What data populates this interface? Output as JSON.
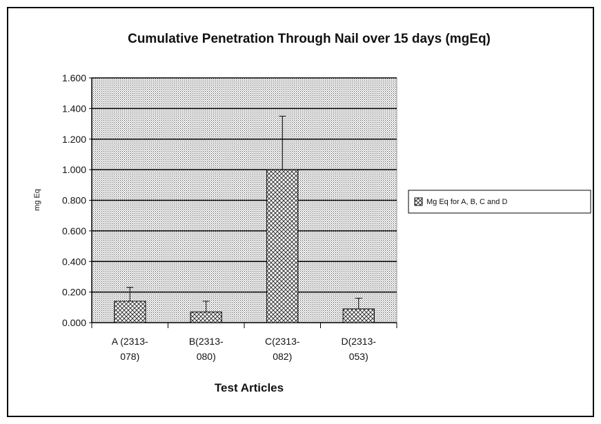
{
  "chart_data": {
    "type": "bar",
    "title": "Cumulative Penetration Through Nail over 15 days (mgEq)",
    "xlabel": "Test Articles",
    "ylabel": "mg Eq",
    "ylim": [
      0,
      1.6
    ],
    "yticks": [
      "0.000",
      "0.200",
      "0.400",
      "0.600",
      "0.800",
      "1.000",
      "1.200",
      "1.400",
      "1.600"
    ],
    "categories": [
      [
        "A (2313-",
        "078)"
      ],
      [
        "B(2313-",
        "080)"
      ],
      [
        "C(2313-",
        "082)"
      ],
      [
        "D(2313-",
        "053)"
      ]
    ],
    "series": [
      {
        "name": "Mg Eq for A, B, C and D",
        "values": [
          0.14,
          0.07,
          1.0,
          0.09
        ],
        "errors": [
          0.09,
          0.07,
          0.35,
          0.07
        ]
      }
    ],
    "grid": true,
    "legend_position": "right"
  }
}
